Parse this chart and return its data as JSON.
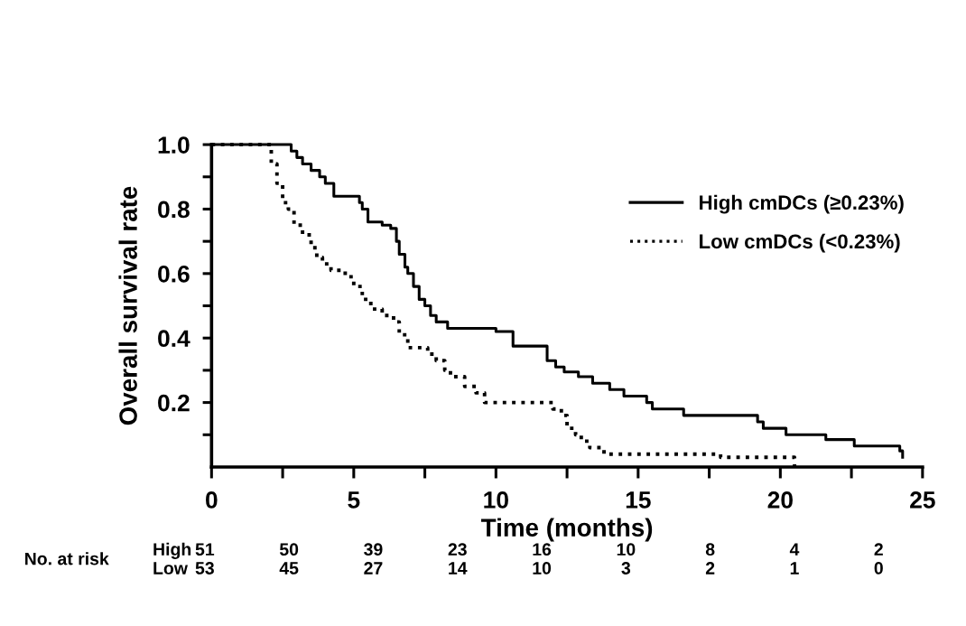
{
  "chart_data": {
    "type": "step",
    "xlabel": "Time (months)",
    "ylabel": "Overall survival rate",
    "xlim": [
      0,
      25
    ],
    "xticks": [
      0,
      {
        "value": 2.5,
        "label": null
      },
      5,
      {
        "value": 7.5,
        "label": null
      },
      10,
      {
        "value": 12.5,
        "label": null
      },
      15,
      {
        "value": 17.5,
        "label": null
      },
      20,
      {
        "value": 22.5,
        "label": null
      },
      25
    ],
    "ylim": [
      0,
      1.0
    ],
    "yticks": [
      {
        "value": 0.1,
        "label": null
      },
      0.2,
      {
        "value": 0.3,
        "label": null
      },
      0.4,
      {
        "value": 0.5,
        "label": null
      },
      0.6,
      {
        "value": 0.7,
        "label": null
      },
      0.8,
      {
        "value": 0.9,
        "label": null
      },
      {
        "value": 1.0,
        "label": "1.0"
      }
    ],
    "grid": false,
    "legend": "top right",
    "marker": "none",
    "series": [
      {
        "name": "High cmDCs (≥0.23%)",
        "color": "#000000",
        "line_style": "solid",
        "x": [
          0,
          2.8,
          3.0,
          3.2,
          3.5,
          3.8,
          4.0,
          4.3,
          5.2,
          5.3,
          5.5,
          6.0,
          6.3,
          6.5,
          6.6,
          6.8,
          6.9,
          7.1,
          7.3,
          7.5,
          7.7,
          7.9,
          8.3,
          10.0,
          10.6,
          11.8,
          12.1,
          12.4,
          12.9,
          13.4,
          14.0,
          14.5,
          15.3,
          15.5,
          16.6,
          19.2,
          19.4,
          20.2,
          21.6,
          22.6,
          24.2,
          24.3
        ],
        "values": [
          1.0,
          0.98,
          0.96,
          0.94,
          0.92,
          0.9,
          0.88,
          0.84,
          0.82,
          0.8,
          0.76,
          0.75,
          0.74,
          0.7,
          0.66,
          0.62,
          0.6,
          0.56,
          0.52,
          0.5,
          0.47,
          0.45,
          0.43,
          0.42,
          0.375,
          0.33,
          0.31,
          0.295,
          0.28,
          0.26,
          0.24,
          0.22,
          0.2,
          0.18,
          0.16,
          0.14,
          0.12,
          0.1,
          0.085,
          0.065,
          0.05,
          0.03
        ]
      },
      {
        "name": "Low cmDCs (<0.23%)",
        "color": "#000000",
        "line_style": "dotted",
        "x": [
          0,
          2.1,
          2.3,
          2.5,
          2.7,
          2.9,
          3.2,
          3.5,
          3.7,
          3.9,
          4.2,
          4.7,
          5.0,
          5.3,
          5.6,
          6.0,
          6.4,
          6.6,
          6.9,
          7.6,
          7.9,
          8.2,
          8.4,
          8.9,
          9.3,
          9.6,
          12.0,
          12.3,
          12.5,
          12.8,
          13.0,
          13.3,
          13.8,
          14.2,
          17.9,
          20.5
        ],
        "values": [
          1.0,
          0.94,
          0.88,
          0.82,
          0.8,
          0.75,
          0.72,
          0.68,
          0.65,
          0.63,
          0.61,
          0.59,
          0.56,
          0.52,
          0.49,
          0.47,
          0.45,
          0.41,
          0.37,
          0.35,
          0.33,
          0.3,
          0.28,
          0.25,
          0.23,
          0.2,
          0.18,
          0.16,
          0.12,
          0.1,
          0.08,
          0.06,
          0.04,
          0.04,
          0.03,
          0.0
        ]
      }
    ],
    "annotations": [
      "No. at risk",
      "High",
      "Low",
      "51",
      "50",
      "39",
      "23",
      "16",
      "10",
      "8",
      "4",
      "2",
      "53",
      "45",
      "27",
      "14",
      "10",
      "3",
      "2",
      "1",
      "0"
    ]
  }
}
